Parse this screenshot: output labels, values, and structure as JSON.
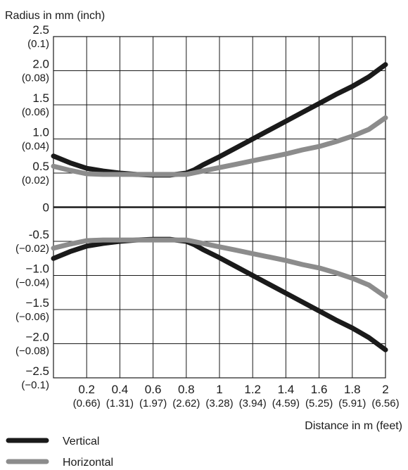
{
  "chart_data": {
    "type": "line",
    "ylabel": "Radius in mm (inch)",
    "xlabel": "Distance in m (feet)",
    "xlim": [
      0,
      2
    ],
    "ylim": [
      -2.5,
      2.5
    ],
    "grid": true,
    "legend_position": "bottom-left",
    "x_ticks": [
      {
        "value": 0.2,
        "label": "0.2",
        "sublabel": "(0.66)"
      },
      {
        "value": 0.4,
        "label": "0.4",
        "sublabel": "(1.31)"
      },
      {
        "value": 0.6,
        "label": "0.6",
        "sublabel": "(1.97)"
      },
      {
        "value": 0.8,
        "label": "0.8",
        "sublabel": "(2.62)"
      },
      {
        "value": 1.0,
        "label": "1",
        "sublabel": "(3.28)"
      },
      {
        "value": 1.2,
        "label": "1.2",
        "sublabel": "(3.94)"
      },
      {
        "value": 1.4,
        "label": "1.4",
        "sublabel": "(4.59)"
      },
      {
        "value": 1.6,
        "label": "1.6",
        "sublabel": "(5.25)"
      },
      {
        "value": 1.8,
        "label": "1.8",
        "sublabel": "(5.91)"
      },
      {
        "value": 2.0,
        "label": "2",
        "sublabel": "(6.56)"
      }
    ],
    "y_ticks": [
      {
        "value": 2.5,
        "label": "2.5",
        "sublabel": "(0.1)"
      },
      {
        "value": 2.0,
        "label": "2.0",
        "sublabel": "(0.08)"
      },
      {
        "value": 1.5,
        "label": "1.5",
        "sublabel": "(0.06)"
      },
      {
        "value": 1.0,
        "label": "1.0",
        "sublabel": "(0.04)"
      },
      {
        "value": 0.5,
        "label": "0.5",
        "sublabel": "(0.02)"
      },
      {
        "value": 0.0,
        "label": "0",
        "sublabel": ""
      },
      {
        "value": -0.5,
        "label": "-0.5",
        "sublabel": "(−0.02)"
      },
      {
        "value": -1.0,
        "label": "−1.0",
        "sublabel": "(−0.04)"
      },
      {
        "value": -1.5,
        "label": "−1.5",
        "sublabel": "(−0.06)"
      },
      {
        "value": -2.0,
        "label": "−2.0",
        "sublabel": "(−0.08)"
      },
      {
        "value": -2.5,
        "label": "−2.5",
        "sublabel": "(−0.1)"
      }
    ],
    "series": [
      {
        "name": "Vertical",
        "color": "#1a1a1a",
        "mirrored": true,
        "x": [
          0.0,
          0.1,
          0.2,
          0.3,
          0.4,
          0.5,
          0.6,
          0.7,
          0.8,
          0.85,
          0.9,
          1.0,
          1.1,
          1.2,
          1.3,
          1.4,
          1.5,
          1.6,
          1.7,
          1.8,
          1.9,
          2.0
        ],
        "values": [
          0.75,
          0.65,
          0.57,
          0.53,
          0.5,
          0.48,
          0.47,
          0.47,
          0.5,
          0.55,
          0.62,
          0.74,
          0.87,
          1.0,
          1.13,
          1.26,
          1.39,
          1.52,
          1.65,
          1.77,
          1.91,
          2.09
        ]
      },
      {
        "name": "Horizontal",
        "color": "#8c8c8c",
        "mirrored": true,
        "x": [
          0.0,
          0.1,
          0.2,
          0.3,
          0.4,
          0.5,
          0.6,
          0.7,
          0.8,
          0.9,
          1.0,
          1.1,
          1.2,
          1.3,
          1.4,
          1.5,
          1.6,
          1.7,
          1.8,
          1.9,
          2.0
        ],
        "values": [
          0.6,
          0.54,
          0.49,
          0.48,
          0.48,
          0.48,
          0.48,
          0.48,
          0.48,
          0.53,
          0.58,
          0.63,
          0.68,
          0.73,
          0.78,
          0.84,
          0.89,
          0.96,
          1.04,
          1.14,
          1.31
        ]
      }
    ]
  }
}
